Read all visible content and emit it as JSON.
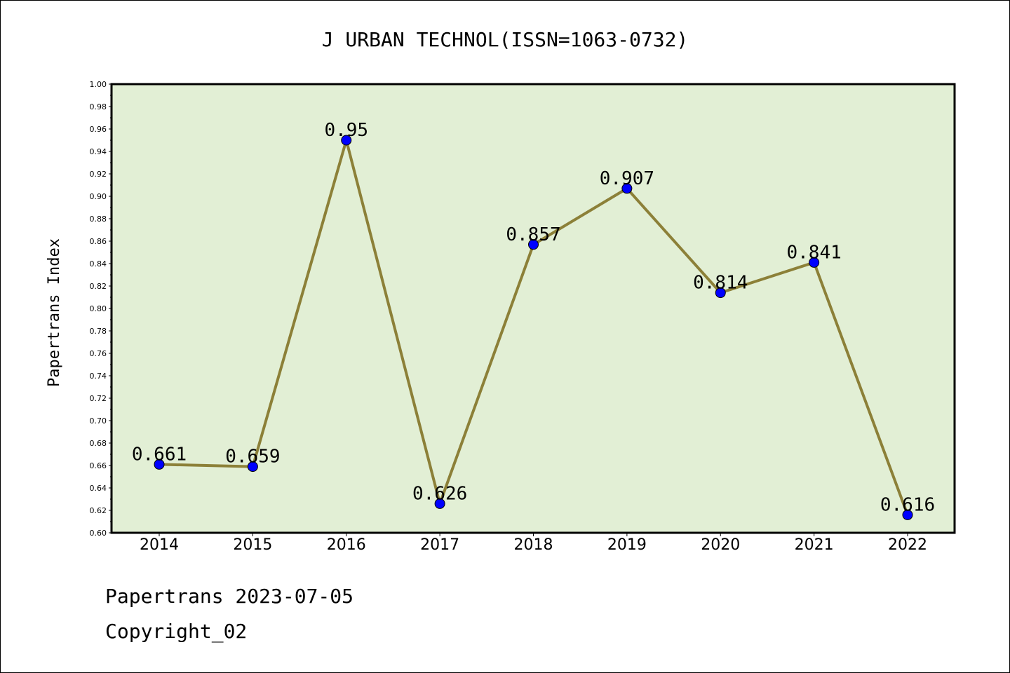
{
  "chart_data": {
    "type": "line",
    "title": "J URBAN TECHNOL(ISSN=1063-0732)",
    "ylabel": "Papertrans Index",
    "xlabel": "",
    "categories": [
      "2014",
      "2015",
      "2016",
      "2017",
      "2018",
      "2019",
      "2020",
      "2021",
      "2022"
    ],
    "series": [
      {
        "values": [
          0.661,
          0.659,
          0.95,
          0.626,
          0.857,
          0.907,
          0.814,
          0.841,
          0.616
        ],
        "labels": [
          "0.661",
          "0.659",
          "0.95",
          "0.626",
          "0.857",
          "0.907",
          "0.814",
          "0.841",
          "0.616"
        ],
        "line_color": "#8c8038",
        "marker_color": "#0000ff"
      }
    ],
    "ylim": [
      0.6,
      1.0
    ],
    "yticks": [
      "0.60",
      "0.62",
      "0.64",
      "0.66",
      "0.68",
      "0.70",
      "0.72",
      "0.74",
      "0.76",
      "0.78",
      "0.80",
      "0.82",
      "0.84",
      "0.86",
      "0.88",
      "0.90",
      "0.92",
      "0.94",
      "0.96",
      "0.98",
      "1.00"
    ],
    "grid": false,
    "plot_background": "#e2efd5"
  },
  "footer": {
    "line1": "Papertrans 2023-07-05",
    "line2": "Copyright_02"
  }
}
